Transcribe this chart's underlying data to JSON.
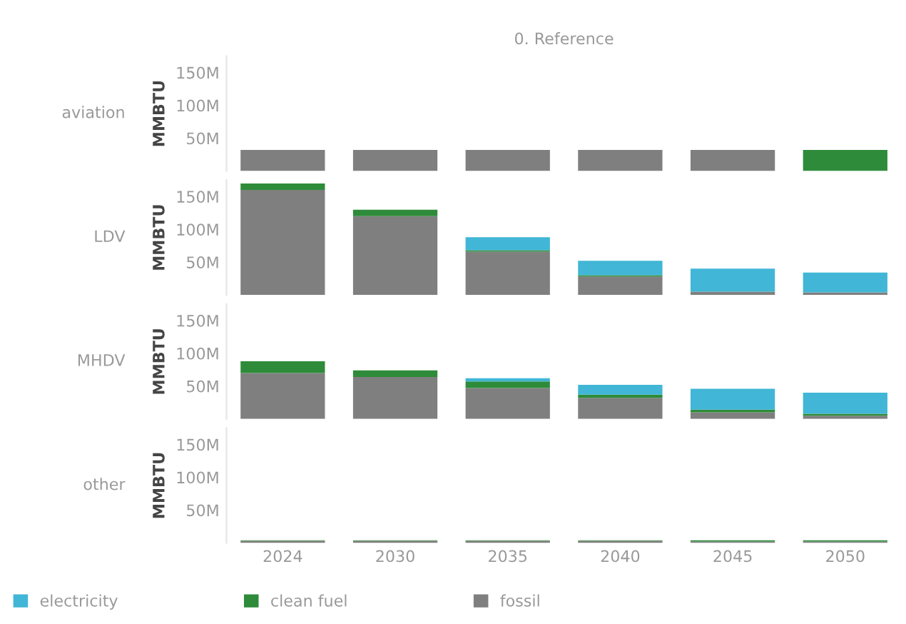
{
  "chart_data": [
    {
      "type": "bar",
      "title": "aviation",
      "subtitle": "0. Reference",
      "ylabel": "MMBTU",
      "stacked": true,
      "categories": [
        "2024",
        "2030",
        "2035",
        "2040",
        "2045",
        "2050"
      ],
      "series": [
        {
          "name": "fossil",
          "color": "#7f7f7f",
          "values": [
            32000000,
            32000000,
            32000000,
            32000000,
            32000000,
            0
          ]
        },
        {
          "name": "clean fuel",
          "color": "#2e8b3a",
          "values": [
            0,
            0,
            0,
            0,
            0,
            32000000
          ]
        },
        {
          "name": "electricity",
          "color": "#41b6d6",
          "values": [
            0,
            0,
            0,
            0,
            0,
            0
          ]
        }
      ],
      "ylim": [
        0,
        175000000
      ],
      "yticks": [
        {
          "value": 50000000,
          "label": "50M"
        },
        {
          "value": 100000000,
          "label": "100M"
        },
        {
          "value": 150000000,
          "label": "150M"
        }
      ],
      "tick_labels": "y",
      "legend": "bottom"
    },
    {
      "type": "bar",
      "title": "LDV",
      "ylabel": "MMBTU",
      "stacked": true,
      "categories": [
        "2024",
        "2030",
        "2035",
        "2040",
        "2045",
        "2050"
      ],
      "series": [
        {
          "color": "#7f7f7f",
          "values": [
            160000000,
            120000000,
            66000000,
            28000000,
            5000000,
            4000000
          ]
        },
        {
          "color": "#2e8b3a",
          "values": [
            10000000,
            10000000,
            2000000,
            2000000,
            0,
            0
          ]
        },
        {
          "color": "#41b6d6",
          "values": [
            0,
            0,
            20000000,
            22000000,
            35000000,
            30000000
          ]
        }
      ],
      "ylim": [
        0,
        175000000
      ],
      "yticks": [
        {
          "value": 50000000,
          "label": "50M"
        },
        {
          "value": 100000000,
          "label": "100M"
        },
        {
          "value": 150000000,
          "label": "150M"
        }
      ],
      "tick_labels": "y"
    },
    {
      "type": "bar",
      "title": "MHDV",
      "ylabel": "MMBTU",
      "stacked": true,
      "categories": [
        "2024",
        "2030",
        "2035",
        "2040",
        "2045",
        "2050"
      ],
      "series": [
        {
          "color": "#7f7f7f",
          "values": [
            70000000,
            64000000,
            47000000,
            32000000,
            10000000,
            5000000
          ]
        },
        {
          "color": "#2e8b3a",
          "values": [
            18000000,
            10000000,
            10000000,
            5000000,
            4000000,
            3000000
          ]
        },
        {
          "color": "#41b6d6",
          "values": [
            0,
            0,
            5000000,
            15000000,
            32000000,
            32000000
          ]
        }
      ],
      "ylim": [
        0,
        175000000
      ],
      "yticks": [
        {
          "value": 50000000,
          "label": "50M"
        },
        {
          "value": 100000000,
          "label": "100M"
        },
        {
          "value": 150000000,
          "label": "150M"
        }
      ],
      "tick_labels": "y"
    },
    {
      "type": "bar",
      "title": "other",
      "ylabel": "MMBTU",
      "stacked": true,
      "categories": [
        "2024",
        "2030",
        "2035",
        "2040",
        "2045",
        "2050"
      ],
      "series": [
        {
          "color": "#7f7f7f",
          "values": [
            3000000,
            3000000,
            3000000,
            3000000,
            2000000,
            2000000
          ]
        },
        {
          "color": "#2e8b3a",
          "values": [
            1000000,
            1000000,
            1000000,
            1000000,
            2000000,
            2000000
          ]
        },
        {
          "color": "#41b6d6",
          "values": [
            0,
            0,
            0,
            0,
            0,
            0
          ]
        }
      ],
      "ylim": [
        0,
        175000000
      ],
      "yticks": [
        {
          "value": 50000000,
          "label": "50M"
        },
        {
          "value": 100000000,
          "label": "100M"
        },
        {
          "value": 150000000,
          "label": "150M"
        }
      ]
    }
  ]
}
